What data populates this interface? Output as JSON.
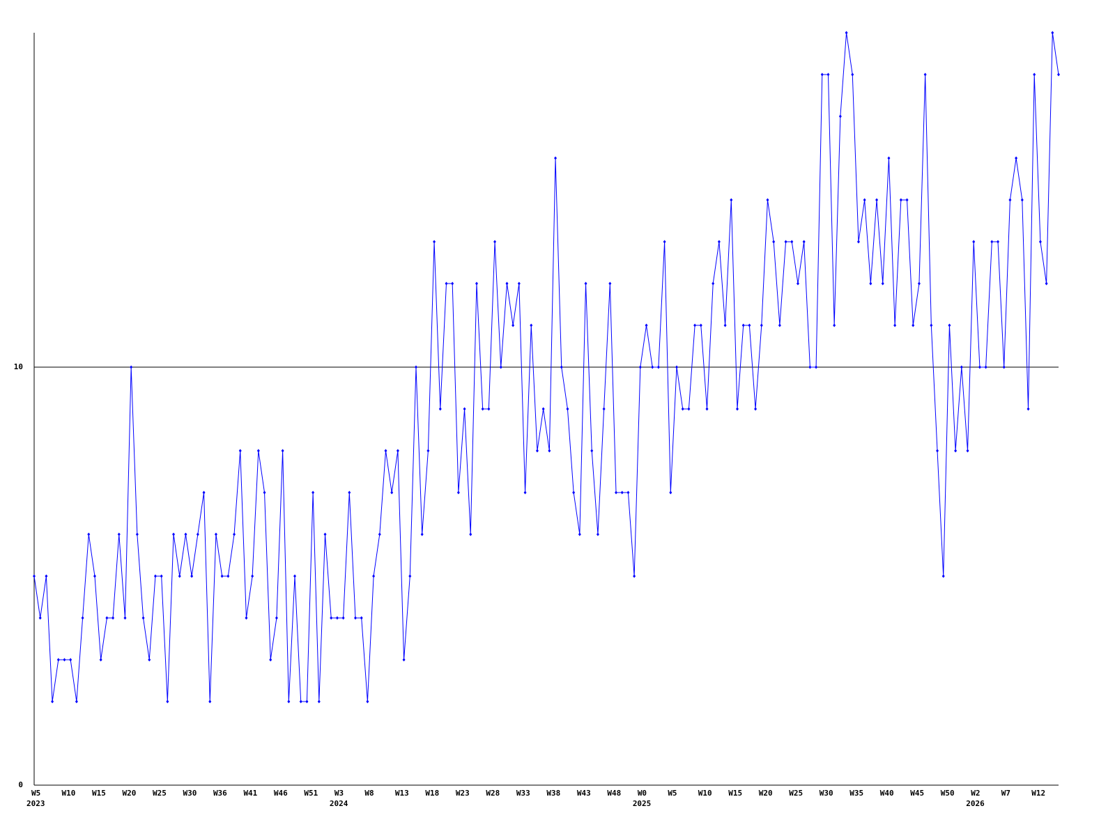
{
  "chart_data": {
    "type": "line",
    "values": [
      5,
      4,
      5,
      2,
      3,
      3,
      3,
      2,
      4,
      6,
      5,
      3,
      4,
      4,
      6,
      4,
      10,
      6,
      4,
      3,
      5,
      5,
      2,
      6,
      5,
      6,
      5,
      6,
      7,
      2,
      6,
      5,
      5,
      6,
      8,
      4,
      5,
      8,
      7,
      3,
      4,
      8,
      2,
      5,
      2,
      2,
      7,
      2,
      6,
      4,
      4,
      4,
      7,
      4,
      4,
      2,
      5,
      6,
      8,
      7,
      8,
      3,
      5,
      10,
      6,
      8,
      13,
      9,
      12,
      12,
      7,
      9,
      6,
      12,
      9,
      9,
      13,
      10,
      12,
      11,
      12,
      7,
      11,
      8,
      9,
      8,
      15,
      10,
      9,
      7,
      6,
      12,
      8,
      6,
      9,
      12,
      7,
      7,
      7,
      5,
      10,
      11,
      10,
      10,
      13,
      7,
      10,
      9,
      9,
      11,
      11,
      9,
      12,
      13,
      11,
      14,
      9,
      11,
      11,
      9,
      11,
      14,
      13,
      11,
      13,
      13,
      12,
      13,
      10,
      10,
      17,
      17,
      11,
      16,
      18,
      17,
      13,
      14,
      12,
      14,
      12,
      15,
      11,
      14,
      14,
      11,
      12,
      17,
      11,
      8,
      5,
      11,
      8,
      10,
      8,
      13,
      10,
      10,
      13,
      13,
      10,
      14,
      15,
      14,
      9,
      17,
      13,
      12,
      18,
      17
    ],
    "color": "#0000ff",
    "ylim": [
      0,
      18
    ],
    "yticks": [
      0,
      10
    ],
    "grid": true,
    "xlim": [
      0,
      169
    ],
    "xticks": [
      {
        "value": 0,
        "label": "W5"
      },
      {
        "value": 5,
        "label": "W10"
      },
      {
        "value": 10,
        "label": "W15"
      },
      {
        "value": 15,
        "label": "W20"
      },
      {
        "value": 20,
        "label": "W25"
      },
      {
        "value": 25,
        "label": "W30"
      },
      {
        "value": 30,
        "label": "W36"
      },
      {
        "value": 35,
        "label": "W41"
      },
      {
        "value": 40,
        "label": "W46"
      },
      {
        "value": 45,
        "label": "W51"
      },
      {
        "value": 50,
        "label": "W3"
      },
      {
        "value": 55,
        "label": "W8"
      },
      {
        "value": 60,
        "label": "W13"
      },
      {
        "value": 65,
        "label": "W18"
      },
      {
        "value": 70,
        "label": "W23"
      },
      {
        "value": 75,
        "label": "W28"
      },
      {
        "value": 80,
        "label": "W33"
      },
      {
        "value": 85,
        "label": "W38"
      },
      {
        "value": 90,
        "label": "W43"
      },
      {
        "value": 95,
        "label": "W48"
      },
      {
        "value": 100,
        "label": "W0"
      },
      {
        "value": 105,
        "label": "W5"
      },
      {
        "value": 110,
        "label": "W10"
      },
      {
        "value": 115,
        "label": "W15"
      },
      {
        "value": 120,
        "label": "W20"
      },
      {
        "value": 125,
        "label": "W25"
      },
      {
        "value": 130,
        "label": "W30"
      },
      {
        "value": 135,
        "label": "W35"
      },
      {
        "value": 140,
        "label": "W40"
      },
      {
        "value": 145,
        "label": "W45"
      },
      {
        "value": 150,
        "label": "W50"
      },
      {
        "value": 155,
        "label": "W2"
      },
      {
        "value": 160,
        "label": "W7"
      },
      {
        "value": 165,
        "label": "W12"
      }
    ],
    "year_ticks": [
      {
        "value": 0,
        "label": "2023"
      },
      {
        "value": 50,
        "label": "2024"
      },
      {
        "value": 100,
        "label": "2025"
      },
      {
        "value": 155,
        "label": "2026"
      }
    ]
  }
}
